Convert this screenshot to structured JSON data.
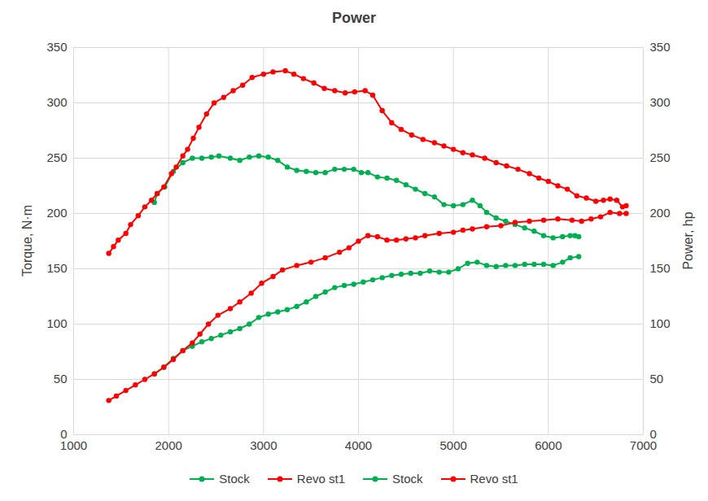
{
  "chart_data": {
    "type": "line",
    "title": "Power",
    "ylabel": "Torque, N·m",
    "y2label": "Power, hp",
    "xlim": [
      1000,
      7000
    ],
    "xticks": [
      1000,
      2000,
      3000,
      4000,
      5000,
      6000,
      7000
    ],
    "ylim": [
      0,
      350
    ],
    "yticks": [
      0,
      50,
      100,
      150,
      200,
      250,
      300,
      350
    ],
    "y2lim": [
      0,
      350
    ],
    "y2ticks": [
      0,
      50,
      100,
      150,
      200,
      250,
      300,
      350
    ],
    "grid": true,
    "legend": "bottom",
    "marker": "circle",
    "series": [
      {
        "name": "Stock",
        "color": "#00b050",
        "x": [
          1850,
          1880,
          1960,
          2050,
          2150,
          2250,
          2350,
          2450,
          2530,
          2650,
          2750,
          2850,
          2950,
          3050,
          3150,
          3250,
          3350,
          3450,
          3550,
          3650,
          3750,
          3850,
          3950,
          4030,
          4100,
          4200,
          4300,
          4400,
          4500,
          4600,
          4700,
          4800,
          4900,
          5000,
          5100,
          5200,
          5280,
          5350,
          5450,
          5550,
          5650,
          5750,
          5850,
          5950,
          6050,
          6150,
          6230,
          6280,
          6320
        ],
        "values": [
          210,
          218,
          224,
          238,
          246,
          250,
          250,
          251,
          252,
          250,
          248,
          251,
          252,
          251,
          248,
          242,
          239,
          238,
          237,
          237,
          240,
          240,
          240,
          237,
          237,
          233,
          232,
          230,
          226,
          222,
          218,
          215,
          208,
          207,
          208,
          212,
          207,
          201,
          196,
          193,
          190,
          187,
          184,
          180,
          178,
          179,
          180,
          180,
          179
        ]
      },
      {
        "name": "Revo st1",
        "color": "#ff0000",
        "x": [
          1370,
          1420,
          1470,
          1550,
          1600,
          1680,
          1750,
          1820,
          1880,
          1950,
          2030,
          2080,
          2150,
          2200,
          2260,
          2320,
          2400,
          2480,
          2580,
          2680,
          2780,
          2880,
          3000,
          3100,
          3230,
          3320,
          3420,
          3530,
          3640,
          3750,
          3860,
          3960,
          4070,
          4150,
          4250,
          4350,
          4450,
          4560,
          4680,
          4800,
          4900,
          5000,
          5100,
          5200,
          5330,
          5450,
          5560,
          5680,
          5800,
          5900,
          6000,
          6100,
          6200,
          6300,
          6400,
          6500,
          6580,
          6650,
          6720,
          6780,
          6820
        ],
        "values": [
          164,
          170,
          176,
          182,
          190,
          198,
          206,
          212,
          218,
          224,
          236,
          242,
          252,
          258,
          268,
          278,
          290,
          300,
          305,
          311,
          316,
          323,
          326,
          328,
          329,
          326,
          322,
          318,
          313,
          311,
          309,
          310,
          311,
          307,
          293,
          282,
          276,
          271,
          267,
          264,
          261,
          258,
          255,
          253,
          250,
          246,
          243,
          240,
          236,
          232,
          229,
          225,
          222,
          216,
          214,
          211,
          212,
          213,
          212,
          206,
          207
        ]
      },
      {
        "name": "Stock",
        "color": "#00b050",
        "axis": "y2",
        "x": [
          1850,
          1950,
          2050,
          2150,
          2250,
          2350,
          2450,
          2550,
          2650,
          2750,
          2850,
          2950,
          3050,
          3150,
          3250,
          3350,
          3450,
          3550,
          3650,
          3750,
          3850,
          3950,
          4050,
          4150,
          4250,
          4350,
          4450,
          4550,
          4650,
          4750,
          4850,
          4950,
          5050,
          5150,
          5250,
          5350,
          5450,
          5550,
          5650,
          5750,
          5850,
          5950,
          6050,
          6150,
          6230,
          6320
        ],
        "values": [
          55,
          61,
          69,
          76,
          80,
          84,
          87,
          90,
          93,
          96,
          100,
          106,
          109,
          111,
          113,
          116,
          120,
          125,
          129,
          133,
          135,
          136,
          138,
          140,
          142,
          144,
          145,
          146,
          146,
          148,
          147,
          147,
          150,
          155,
          156,
          153,
          152,
          153,
          153,
          154,
          154,
          154,
          153,
          156,
          160,
          161
        ]
      },
      {
        "name": "Revo st1",
        "color": "#ff0000",
        "axis": "y2",
        "x": [
          1370,
          1450,
          1550,
          1650,
          1750,
          1850,
          1950,
          2050,
          2150,
          2250,
          2330,
          2420,
          2520,
          2650,
          2750,
          2870,
          2980,
          3100,
          3200,
          3350,
          3500,
          3650,
          3800,
          3900,
          4000,
          4100,
          4200,
          4300,
          4400,
          4500,
          4600,
          4700,
          4850,
          5000,
          5100,
          5200,
          5350,
          5500,
          5650,
          5800,
          5950,
          6100,
          6250,
          6350,
          6450,
          6550,
          6650,
          6750,
          6820
        ],
        "values": [
          31,
          35,
          40,
          45,
          50,
          55,
          61,
          68,
          76,
          83,
          91,
          100,
          108,
          114,
          120,
          128,
          137,
          143,
          149,
          153,
          156,
          160,
          165,
          169,
          175,
          180,
          179,
          176,
          176,
          177,
          178,
          180,
          182,
          183,
          185,
          186,
          188,
          189,
          192,
          193,
          194,
          195,
          194,
          193,
          195,
          197,
          201,
          200,
          200
        ]
      }
    ]
  }
}
